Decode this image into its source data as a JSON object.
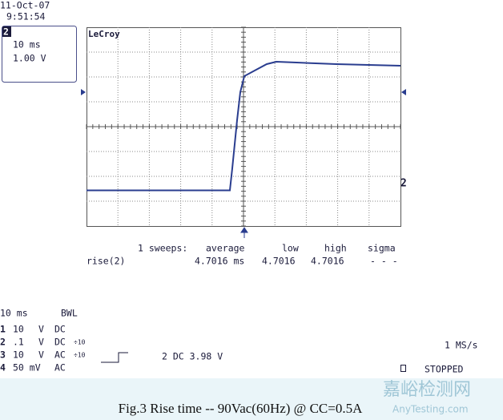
{
  "header": {
    "date": "11-Oct-07",
    "time": "9:51:54"
  },
  "channel_box": {
    "channel": "2",
    "timebase": "10 ms",
    "volts": "1.00 V"
  },
  "brand": "LeCroy",
  "trace_marker": "2",
  "stats": {
    "sweeps": "1 sweeps:",
    "headers": [
      "average",
      "low",
      "high",
      "sigma"
    ],
    "row_label": "rise(2)",
    "values": [
      "4.7016 ms",
      "4.7016",
      "4.7016",
      "- - -"
    ]
  },
  "settings": {
    "timebase": "10 ms",
    "bandwidth": "BWL",
    "channels": [
      [
        "1",
        "10",
        "V",
        "DC",
        ""
      ],
      [
        "2",
        ".1",
        "V",
        "DC",
        "÷10"
      ],
      [
        "3",
        "10",
        "V",
        "AC",
        "÷10"
      ],
      [
        "4",
        "50 mV",
        "",
        "AC",
        ""
      ]
    ],
    "trigger": "2 DC 3.98 V",
    "sample_rate": "1 MS/s",
    "status": "STOPPED"
  },
  "caption": "Fig.3  Rise time  -- 90Vac(60Hz) @  CC=0.5A",
  "watermark": {
    "main": "嘉峪检测网",
    "sub": "AnyTesting.com"
  }
}
